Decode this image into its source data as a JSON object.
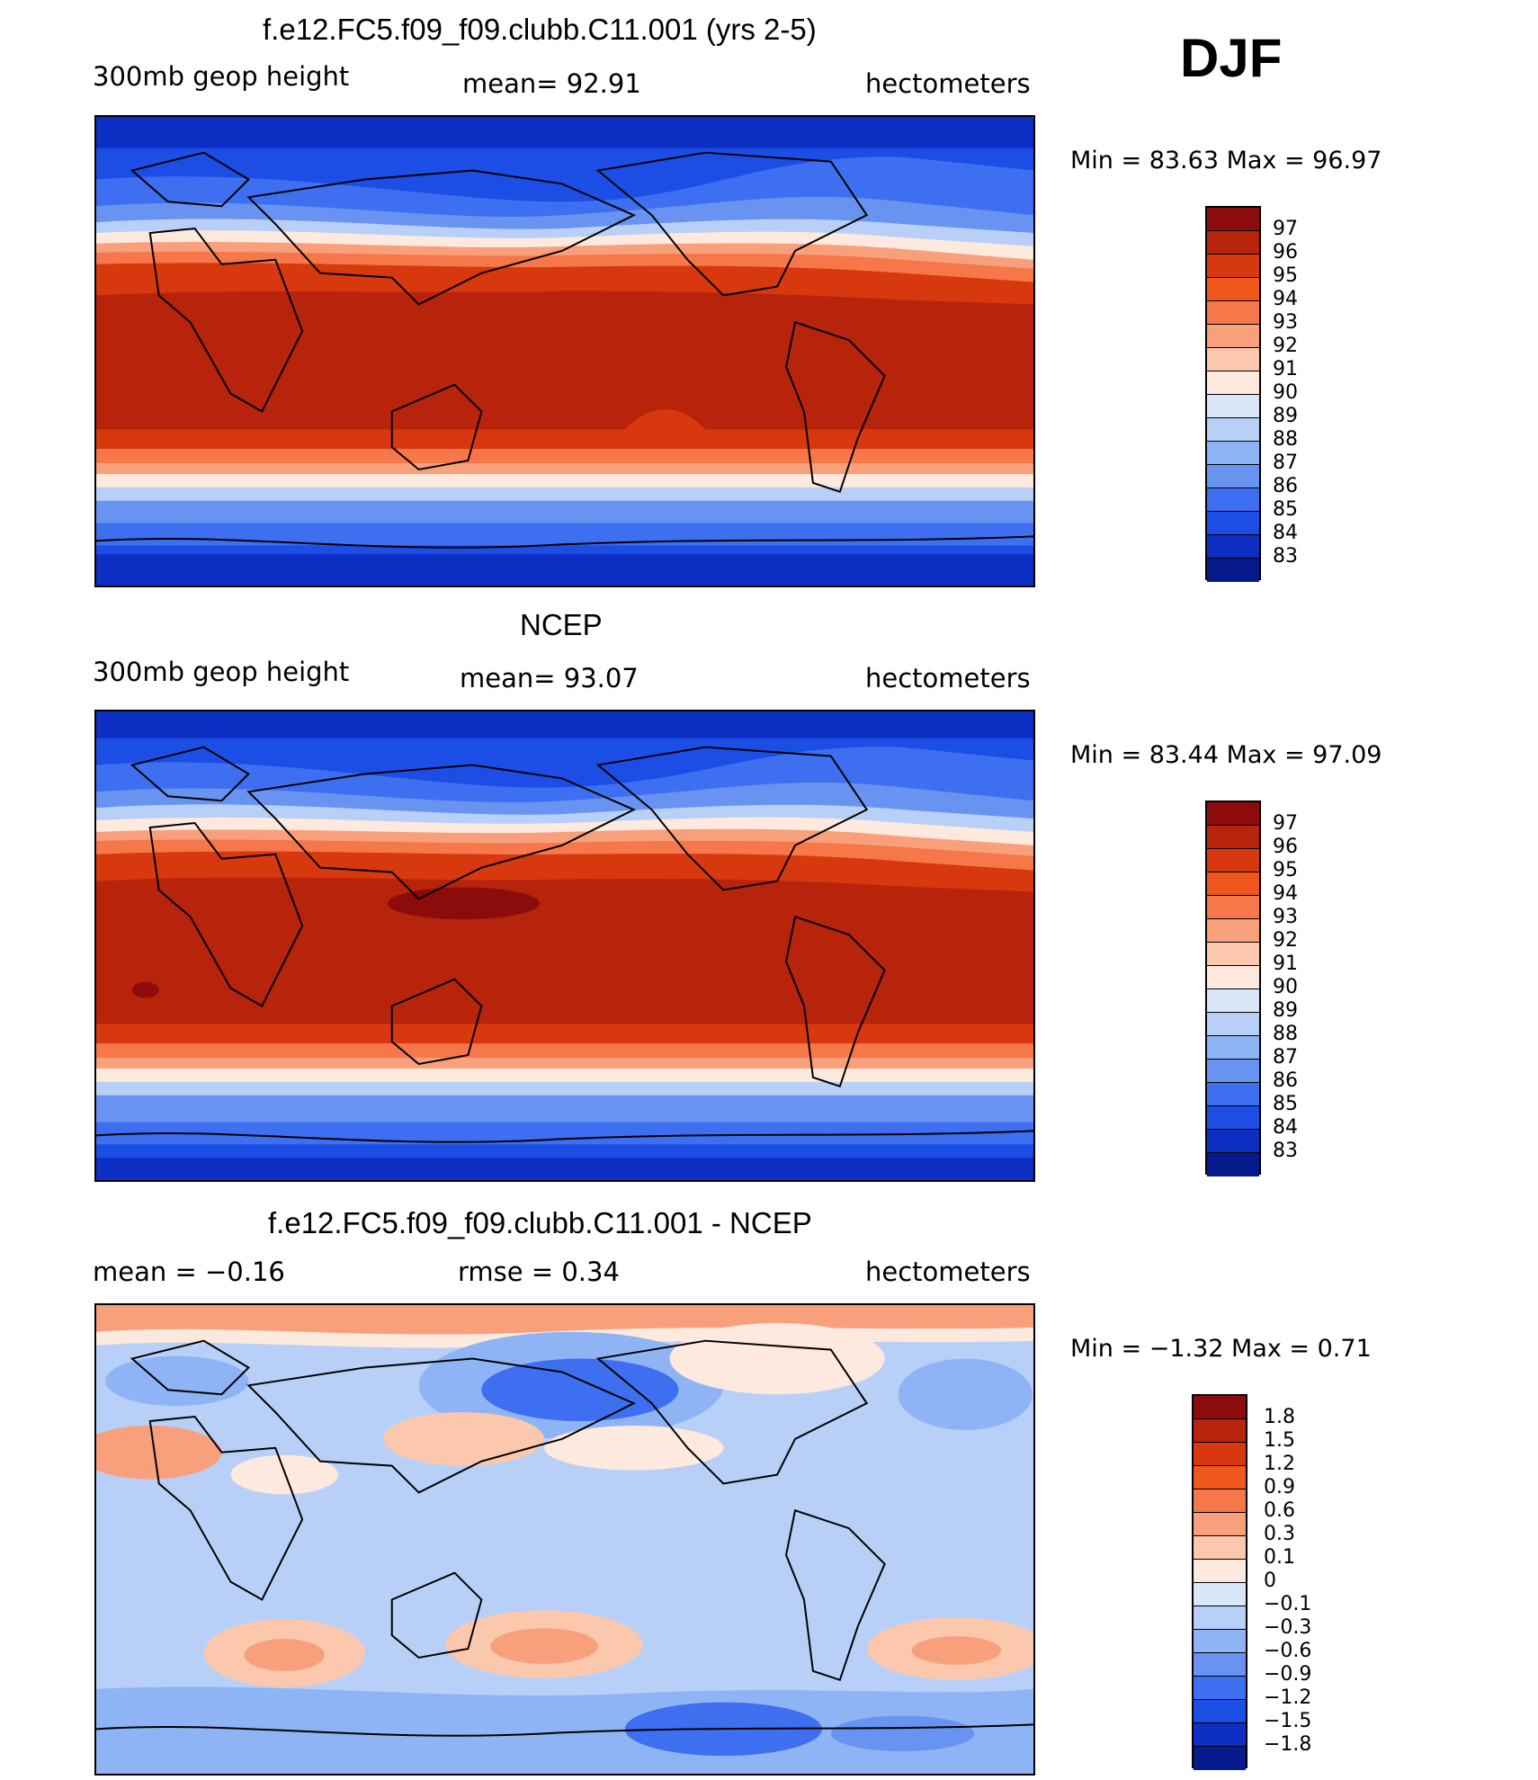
{
  "season": "DJF",
  "panel1": {
    "title": "f.e12.FC5.f09_f09.clubb.C11.001 (yrs 2-5)",
    "left": "300mb  geop  height",
    "center": "mean=   92.91",
    "right": "hectometers",
    "minmax": "Min  =    83.63  Max  =    96.97"
  },
  "panel2": {
    "title": "NCEP",
    "left": "300mb  geop  height",
    "center": "mean=   93.07",
    "right": "hectometers",
    "minmax": "Min  =    83.44  Max  =    97.09"
  },
  "panel3": {
    "title": "f.e12.FC5.f09_f09.clubb.C11.001 - NCEP",
    "left": "mean  =    −0.16",
    "center": "rmse  =     0.34",
    "right": "hectometers",
    "minmax": "Min  =    −1.32  Max  =      0.71"
  },
  "colorbar_abs": {
    "labels": [
      "97",
      "96",
      "95",
      "94",
      "93",
      "92",
      "91",
      "90",
      "89",
      "88",
      "87",
      "86",
      "85",
      "84",
      "83"
    ],
    "colors": [
      "#8c0b0b",
      "#b8230c",
      "#d8380e",
      "#f0571c",
      "#f5774a",
      "#f8a07c",
      "#fbc8ae",
      "#fde9de",
      "#d9e7f9",
      "#b8d0f7",
      "#8fb4f5",
      "#6893f0",
      "#3d6ff0",
      "#1c4ee6",
      "#0d2fc4",
      "#071a8c"
    ]
  },
  "colorbar_diff": {
    "labels": [
      "1.8",
      "1.5",
      "1.2",
      "0.9",
      "0.6",
      "0.3",
      "0.1",
      "0",
      "−0.1",
      "−0.3",
      "−0.6",
      "−0.9",
      "−1.2",
      "−1.5",
      "−1.8"
    ],
    "colors": [
      "#8c0b0b",
      "#b8230c",
      "#d8380e",
      "#f0571c",
      "#f5774a",
      "#f8a07c",
      "#fbc8ae",
      "#fde9de",
      "#d9e7f9",
      "#b8d0f7",
      "#8fb4f5",
      "#6893f0",
      "#3d6ff0",
      "#1c4ee6",
      "#0d2fc4",
      "#071a8c"
    ]
  },
  "palette": {
    "blue_dark": "#0d2fc4",
    "blue": "#3d6ff0",
    "blue_light": "#b8d0f7",
    "white": "#fde9de",
    "orange": "#f5774a",
    "red": "#d8380e",
    "red_dark": "#b8230c",
    "maroon": "#8c0b0b"
  }
}
